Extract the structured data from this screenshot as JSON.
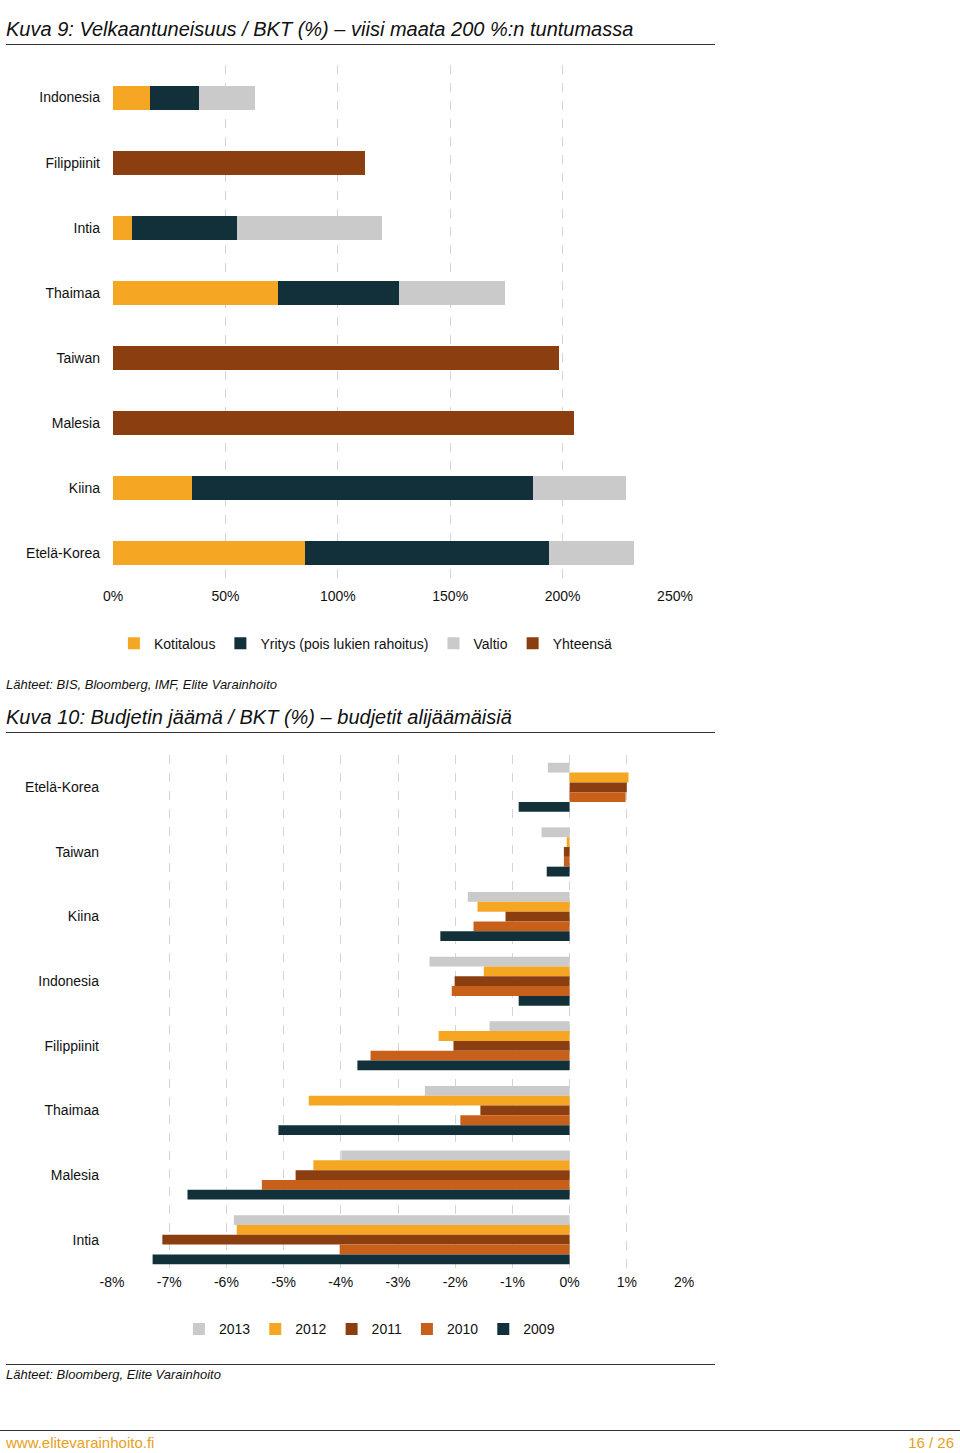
{
  "chart_data": [
    {
      "type": "bar",
      "title": "Kuva 9: Velkaantuneisuus / BKT (%) – viisi maata 200 %:n tuntumassa",
      "source": "Lähteet: BIS, Bloomberg, IMF, Elite Varainhoito",
      "orientation": "horizontal",
      "stacked": true,
      "grid": true,
      "legend": "bottom",
      "categories": [
        "Indonesia",
        "Filippiinit",
        "Intia",
        "Thaimaa",
        "Taiwan",
        "Malesia",
        "Kiina",
        "Etelä-Korea"
      ],
      "series": [
        {
          "name": "Kotitalous",
          "color": "#F5A623",
          "values": [
            16.5,
            null,
            8.5,
            73.4,
            null,
            null,
            35.1,
            85.4
          ]
        },
        {
          "name": "Yritys (pois lukien rahoitus)",
          "color": "#12303A",
          "values": [
            21.8,
            null,
            46.7,
            53.8,
            null,
            null,
            151.7,
            108.6
          ]
        },
        {
          "name": "Valtio",
          "color": "#CACACA",
          "values": [
            24.9,
            null,
            64.5,
            47.2,
            null,
            null,
            41.4,
            37.8
          ]
        },
        {
          "name": "Yhteensä",
          "color": "#8B3F10",
          "values": [
            null,
            112,
            null,
            null,
            198.4,
            205,
            null,
            null
          ]
        }
      ],
      "xlim": [
        0,
        250
      ],
      "xticks": [
        {
          "value": 0,
          "label": "0%"
        },
        {
          "value": 50,
          "label": "50%"
        },
        {
          "value": 100,
          "label": "100%"
        },
        {
          "value": 150,
          "label": "150%"
        },
        {
          "value": 200,
          "label": "200%"
        },
        {
          "value": 250,
          "label": "250%"
        }
      ]
    },
    {
      "type": "bar",
      "title": "Kuva 10: Budjetin jäämä / BKT (%) – budjetit alijäämäisiä",
      "source": "Lähteet: Bloomberg, Elite Varainhoito",
      "orientation": "horizontal",
      "stacked": false,
      "grid": true,
      "legend": "bottom",
      "categories": [
        "Etelä-Korea",
        "Taiwan",
        "Kiina",
        "Indonesia",
        "Filippiinit",
        "Thaimaa",
        "Malesia",
        "Intia"
      ],
      "series": [
        {
          "name": "2013",
          "color": "#CACACA",
          "values": [
            -0.38,
            -0.49,
            -1.78,
            -2.45,
            -1.4,
            -2.53,
            -3.99,
            -5.87
          ]
        },
        {
          "name": "2012",
          "color": "#F5A623",
          "values": [
            1.03,
            -0.05,
            -1.61,
            -1.5,
            -2.29,
            -4.56,
            -4.48,
            -5.82
          ]
        },
        {
          "name": "2011",
          "color": "#8B3F10",
          "values": [
            1.0,
            -0.1,
            -1.12,
            -2.01,
            -2.03,
            -1.56,
            -4.79,
            -7.12
          ]
        },
        {
          "name": "2010",
          "color": "#C8601A",
          "values": [
            0.98,
            -0.1,
            -1.68,
            -2.06,
            -3.48,
            -1.91,
            -5.38,
            -4.02
          ]
        },
        {
          "name": "2009",
          "color": "#12303A",
          "values": [
            -0.89,
            -0.4,
            -2.26,
            -0.89,
            -3.71,
            -5.09,
            -6.68,
            -7.29
          ]
        }
      ],
      "xlim": [
        -8,
        2
      ],
      "xticks": [
        {
          "value": -8,
          "label": "-8%"
        },
        {
          "value": -7,
          "label": "-7%"
        },
        {
          "value": -6,
          "label": "-6%"
        },
        {
          "value": -5,
          "label": "-5%"
        },
        {
          "value": -4,
          "label": "-4%"
        },
        {
          "value": -3,
          "label": "-3%"
        },
        {
          "value": -2,
          "label": "-2%"
        },
        {
          "value": -1,
          "label": "-1%"
        },
        {
          "value": 0,
          "label": "0%"
        },
        {
          "value": 1,
          "label": "1%"
        },
        {
          "value": 2,
          "label": "2%"
        }
      ]
    }
  ],
  "footer": {
    "url": "www.elitevarainhoito.fi",
    "page": "16 / 26"
  }
}
